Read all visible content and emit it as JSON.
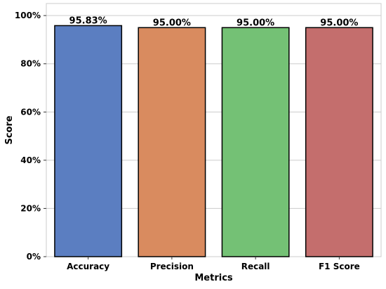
{
  "chart_data": {
    "type": "bar",
    "title": "",
    "xlabel": "Metrics",
    "ylabel": "Score",
    "categories": [
      "Accuracy",
      "Precision",
      "Recall",
      "F1 Score"
    ],
    "values": [
      0.9583,
      0.95,
      0.95,
      0.95
    ],
    "data_labels": [
      "95.83%",
      "95.00%",
      "95.00%",
      "95.00%"
    ],
    "colors": [
      "#5b7ec1",
      "#d98b5f",
      "#74c175",
      "#c46e6d"
    ],
    "ylim": [
      0,
      1.05
    ],
    "yticks": [
      0,
      0.2,
      0.4,
      0.6,
      0.8,
      1.0
    ],
    "ytick_labels": [
      "0%",
      "20%",
      "40%",
      "60%",
      "80%",
      "100%"
    ],
    "grid": "horizontal",
    "legend": "none"
  }
}
